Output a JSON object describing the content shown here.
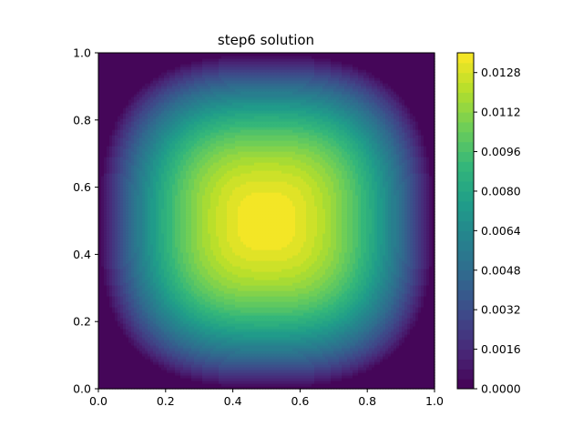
{
  "chart_data": {
    "type": "heatmap",
    "subtype": "filled-contour",
    "title": "step6 solution",
    "xlabel": "",
    "ylabel": "",
    "xlim": [
      0.0,
      1.0
    ],
    "ylim": [
      0.0,
      1.0
    ],
    "x_ticks": [
      "0.0",
      "0.2",
      "0.4",
      "0.6",
      "0.8",
      "1.0"
    ],
    "y_ticks": [
      "0.0",
      "0.2",
      "0.4",
      "0.6",
      "0.8",
      "1.0"
    ],
    "colormap": "viridis",
    "value_range": [
      0.0,
      0.0136
    ],
    "contour_levels": 34,
    "peak": {
      "x": 0.5,
      "y": 0.5,
      "value": 0.0136
    },
    "boundary_value": 0.0,
    "colorbar": {
      "ticks": [
        "0.0000",
        "0.0016",
        "0.0032",
        "0.0048",
        "0.0064",
        "0.0080",
        "0.0096",
        "0.0112",
        "0.0128"
      ],
      "range": [
        0.0,
        0.0136
      ]
    },
    "grid": false
  }
}
